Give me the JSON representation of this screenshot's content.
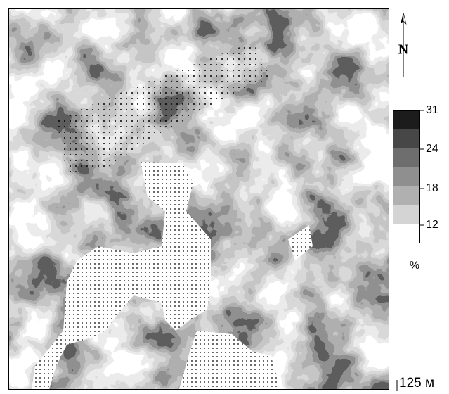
{
  "north_label": "N",
  "legend": {
    "ticks": [
      31,
      24,
      18,
      12
    ],
    "unit": "%",
    "colors": [
      "#1c1c1c",
      "#474747",
      "#6e6e6e",
      "#8f8f8f",
      "#b0b0b0",
      "#d4d4d4",
      "#ffffff"
    ]
  },
  "scale_label": "125 м"
}
